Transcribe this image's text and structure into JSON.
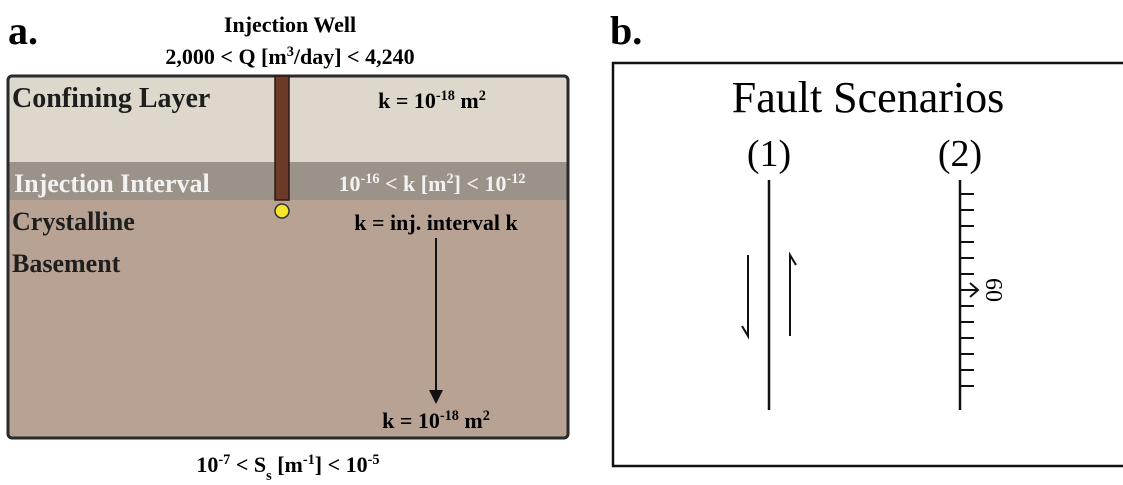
{
  "panel_a": {
    "letter": "a.",
    "well_title": "Injection Well",
    "rate": [
      {
        "t": "2,000 < Q [m"
      },
      {
        "sup": "3"
      },
      {
        "t": "/day] < 4,240"
      }
    ],
    "confining_layer": {
      "name": "Confining Layer",
      "k": [
        {
          "t": "k = 10"
        },
        {
          "sup": "-18"
        },
        {
          "t": " m"
        },
        {
          "sup": "2"
        }
      ]
    },
    "injection_interval": {
      "name": "Injection Interval",
      "k": [
        {
          "t": "10"
        },
        {
          "sup": "-16"
        },
        {
          "t": " < k [m"
        },
        {
          "sup": "2"
        },
        {
          "t": "] < 10"
        },
        {
          "sup": "-12"
        }
      ]
    },
    "basement": {
      "name": [
        "Crystalline",
        "Basement"
      ],
      "k_top": [
        {
          "t": "k = inj. interval k"
        }
      ],
      "k_bottom": [
        {
          "t": "k = 10"
        },
        {
          "sup": "-18"
        },
        {
          "t": " m"
        },
        {
          "sup": "2"
        }
      ]
    },
    "storage": [
      {
        "t": "10"
      },
      {
        "sup": "-7"
      },
      {
        "t": " < S"
      },
      {
        "sub": "s"
      },
      {
        "t": " [m"
      },
      {
        "sup": "-1"
      },
      {
        "t": "] < 10"
      },
      {
        "sup": "-5"
      }
    ]
  },
  "panel_b": {
    "letter": "b.",
    "title": "Fault Scenarios",
    "scenarios": [
      "(1)",
      "(2)"
    ],
    "dip": "60"
  }
}
